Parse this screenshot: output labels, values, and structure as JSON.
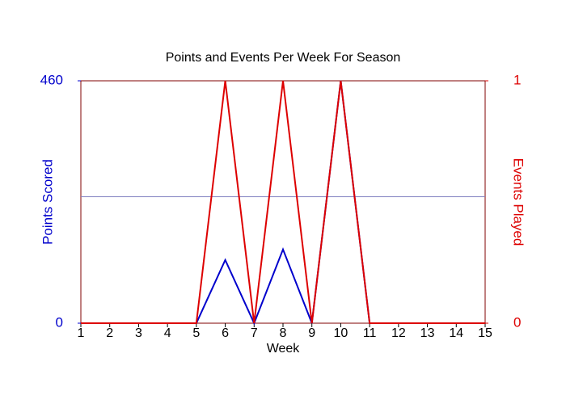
{
  "chart_data": {
    "type": "line",
    "title": "Points and Events Per Week For Season",
    "x_label": "Week",
    "y_label": "Points Scored",
    "y2_label": "Events Played",
    "x": [
      1,
      2,
      3,
      4,
      5,
      6,
      7,
      8,
      9,
      10,
      11,
      12,
      13,
      14,
      15
    ],
    "xlim": [
      1,
      15
    ],
    "xticks": [
      1,
      2,
      3,
      4,
      5,
      6,
      7,
      8,
      9,
      10,
      11,
      12,
      13,
      14,
      15
    ],
    "ylim": [
      0,
      460
    ],
    "yticks": [
      0,
      460
    ],
    "y2lim": [
      0,
      1
    ],
    "y2ticks": [
      0,
      1
    ],
    "hline": {
      "value": 240,
      "color": "#8080c0"
    },
    "series": [
      {
        "name": "Points Scored",
        "color": "#0000cc",
        "values": [
          0,
          0,
          0,
          0,
          0,
          120,
          0,
          140,
          0,
          460,
          0,
          0,
          0,
          0,
          0
        ]
      },
      {
        "name": "Events Played",
        "color": "#dd0000",
        "axis": "y2",
        "values": [
          0,
          0,
          0,
          0,
          0,
          1,
          0,
          1,
          0,
          1,
          0,
          0,
          0,
          0,
          0
        ]
      }
    ]
  }
}
